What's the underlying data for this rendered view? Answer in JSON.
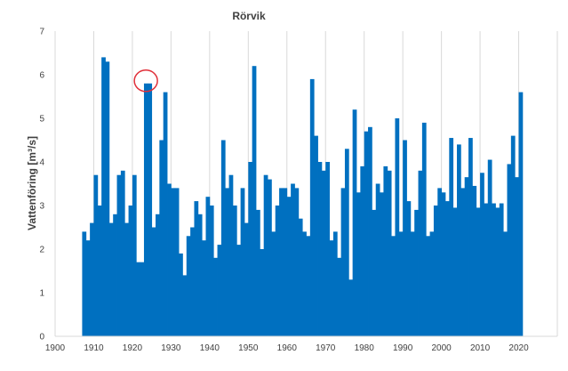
{
  "chart_data": {
    "type": "bar",
    "title": "Rörvik",
    "xlabel": "",
    "ylabel": "Vattenföring [m³/s]",
    "xlim": [
      1900,
      2030
    ],
    "ylim": [
      0,
      7
    ],
    "xticks": [
      1900,
      1910,
      1920,
      1930,
      1940,
      1950,
      1960,
      1970,
      1980,
      1990,
      2000,
      2010,
      2020
    ],
    "yticks": [
      0,
      1,
      2,
      3,
      4,
      5,
      6,
      7
    ],
    "grid": "vertical",
    "bar_color": "#0070C0",
    "highlight_color": "#E0303A",
    "highlight_year": 1923,
    "highlight_value": 5.8,
    "start_year": 1907,
    "years": [
      1907,
      1908,
      1909,
      1910,
      1911,
      1912,
      1913,
      1914,
      1915,
      1916,
      1917,
      1918,
      1919,
      1920,
      1921,
      1922,
      1923,
      1924,
      1925,
      1926,
      1927,
      1928,
      1929,
      1930,
      1931,
      1932,
      1933,
      1934,
      1935,
      1936,
      1937,
      1938,
      1939,
      1940,
      1941,
      1942,
      1943,
      1944,
      1945,
      1946,
      1947,
      1948,
      1949,
      1950,
      1951,
      1952,
      1953,
      1954,
      1955,
      1956,
      1957,
      1958,
      1959,
      1960,
      1961,
      1962,
      1963,
      1964,
      1965,
      1966,
      1967,
      1968,
      1969,
      1970,
      1971,
      1972,
      1973,
      1974,
      1975,
      1976,
      1977,
      1978,
      1979,
      1980,
      1981,
      1982,
      1983,
      1984,
      1985,
      1986,
      1987,
      1988,
      1989,
      1990,
      1991,
      1992,
      1993,
      1994,
      1995,
      1996,
      1997,
      1998,
      1999,
      2000,
      2001,
      2002,
      2003,
      2004,
      2005,
      2006,
      2007,
      2008,
      2009,
      2010,
      2011,
      2012,
      2013,
      2014,
      2015,
      2016,
      2017,
      2018,
      2019,
      2020
    ],
    "values": [
      2.4,
      2.2,
      2.6,
      3.7,
      3.0,
      6.4,
      6.3,
      2.6,
      2.8,
      3.7,
      3.8,
      2.6,
      3.0,
      3.7,
      1.7,
      1.7,
      5.8,
      5.8,
      2.5,
      2.8,
      4.5,
      5.6,
      3.5,
      3.4,
      3.4,
      1.9,
      1.4,
      2.3,
      2.5,
      3.1,
      2.8,
      2.2,
      3.2,
      3.0,
      1.8,
      2.1,
      4.5,
      3.4,
      3.7,
      3.0,
      2.1,
      3.4,
      2.6,
      4.0,
      6.2,
      2.9,
      2.0,
      3.7,
      3.6,
      2.4,
      3.0,
      3.4,
      3.4,
      3.2,
      3.5,
      3.4,
      2.7,
      2.4,
      2.3,
      5.9,
      4.6,
      4.0,
      3.8,
      4.0,
      2.2,
      2.4,
      1.8,
      3.4,
      4.3,
      1.3,
      5.2,
      3.3,
      3.9,
      4.7,
      4.8,
      2.9,
      3.5,
      3.3,
      3.9,
      3.8,
      2.3,
      5.0,
      2.4,
      4.5,
      3.1,
      2.4,
      2.9,
      3.8,
      4.9,
      2.3,
      2.4,
      3.0,
      3.4,
      3.3,
      3.1,
      4.55,
      2.95,
      4.4,
      3.4,
      3.65,
      4.55,
      3.45,
      2.95,
      3.75,
      3.05,
      4.05,
      3.05,
      2.95,
      3.05,
      2.4,
      3.95,
      4.6,
      3.65,
      5.6
    ]
  }
}
